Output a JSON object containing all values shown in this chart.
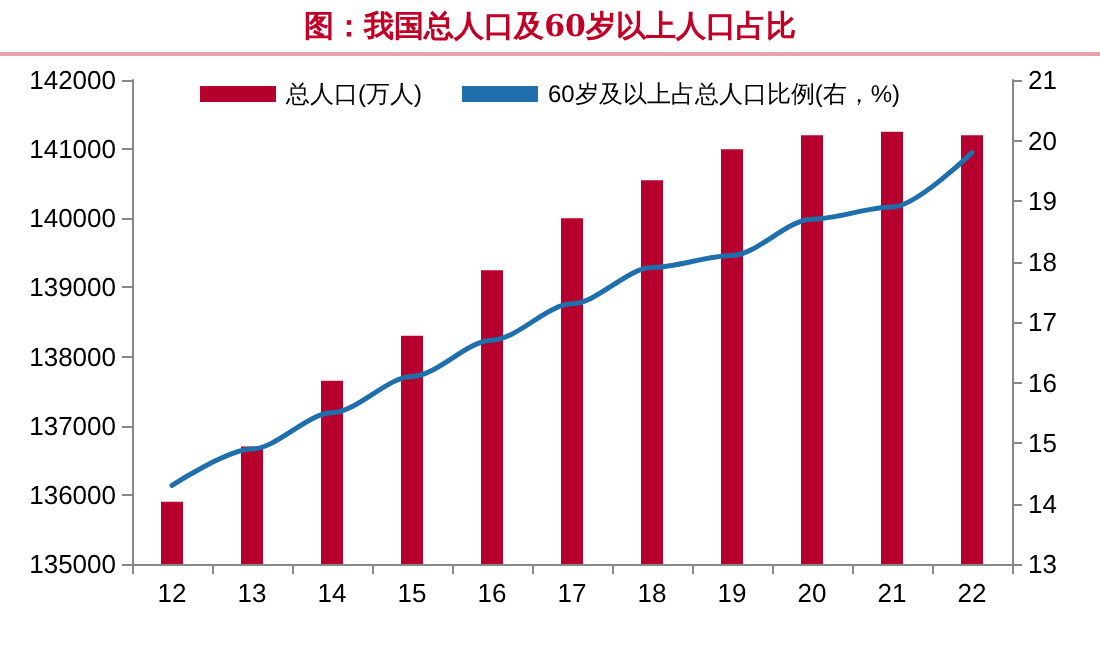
{
  "chart_data": {
    "type": "bar",
    "title": "图：我国总人口及60岁以上人口占比",
    "categories": [
      "12",
      "13",
      "14",
      "15",
      "16",
      "17",
      "18",
      "19",
      "20",
      "21",
      "22"
    ],
    "series": [
      {
        "name": "总人口(万人)",
        "color": "#b5002d",
        "values": [
          135900,
          136700,
          137650,
          138300,
          139250,
          140000,
          140550,
          141000,
          141200,
          141250,
          141200
        ]
      },
      {
        "name": "60岁及以上占总人口比例(右，%)",
        "type": "line",
        "axis": "y2",
        "color": "#1f6fad",
        "values": [
          14.3,
          14.9,
          15.5,
          16.1,
          16.7,
          17.3,
          17.9,
          18.1,
          18.7,
          18.9,
          19.8
        ]
      }
    ],
    "ylim": [
      135000,
      142000
    ],
    "yticks": [
      135000,
      136000,
      137000,
      138000,
      139000,
      140000,
      141000,
      142000
    ],
    "y2lim": [
      13,
      21
    ],
    "y2ticks": [
      13,
      14,
      15,
      16,
      17,
      18,
      19,
      20,
      21
    ],
    "grid": false,
    "legend": "top",
    "marker": "none",
    "line_style": "solid"
  }
}
